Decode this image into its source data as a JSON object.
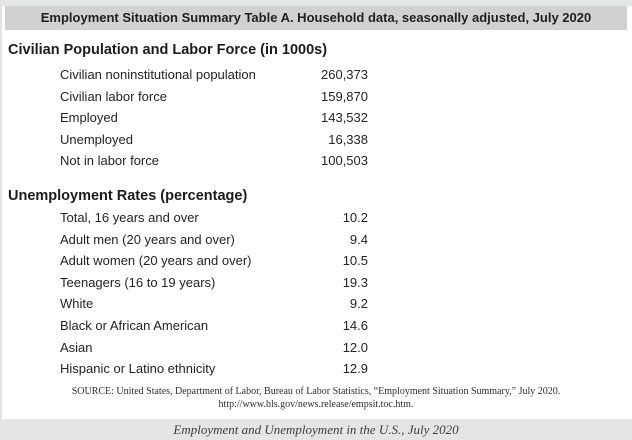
{
  "header": {
    "title": "Employment Situation Summary Table A. Household data, seasonally adjusted, July 2020"
  },
  "sections": [
    {
      "heading": "Civilian Population and Labor Force (in 1000s)",
      "rows": [
        {
          "label": "Civilian noninstitutional population",
          "value": "260,373"
        },
        {
          "label": "Civilian labor force",
          "value": "159,870"
        },
        {
          "label": "Employed",
          "value": "143,532"
        },
        {
          "label": "Unemployed",
          "value": "16,338"
        },
        {
          "label": "Not in labor force",
          "value": "100,503"
        }
      ]
    },
    {
      "heading": "Unemployment Rates (percentage)",
      "rows": [
        {
          "label": "Total, 16 years and over",
          "value": "10.2"
        },
        {
          "label": "Adult men (20 years and over)",
          "value": "9.4"
        },
        {
          "label": "Adult women (20 years and over)",
          "value": "10.5"
        },
        {
          "label": "Teenagers (16 to 19 years)",
          "value": "19.3"
        },
        {
          "label": "White",
          "value": "9.2"
        },
        {
          "label": "Black or African American",
          "value": "14.6"
        },
        {
          "label": "Asian",
          "value": "12.0"
        },
        {
          "label": "Hispanic or Latino ethnicity",
          "value": "12.9"
        }
      ]
    }
  ],
  "source": {
    "line1": "SOURCE: United States, Department of Labor, Bureau of Labor Statistics, “Employment Situation Summary,” July 2020.",
    "line2": "http://www.bls.gov/news.release/empsit.toc.htm."
  },
  "caption": "Employment and Unemployment in the U.S., July 2020",
  "colors": {
    "band": "#e4e5e7",
    "header_bar": "#d1d1d3",
    "text": "#232323"
  }
}
